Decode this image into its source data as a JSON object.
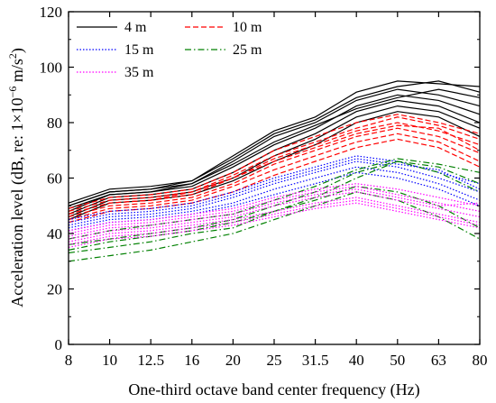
{
  "chart_data": {
    "type": "line",
    "xlabel": "One-third octave band center frequency (Hz)",
    "ylabel_prefix": "Acceleration level (dB, re: 1×10",
    "ylabel_exp": "−6",
    "ylabel_suffix": " m/s",
    "ylabel_sup2": "2",
    "ylabel_close": ")",
    "categories": [
      "8",
      "10",
      "12.5",
      "16",
      "20",
      "25",
      "31.5",
      "40",
      "50",
      "63",
      "80"
    ],
    "ylim": [
      0,
      120
    ],
    "yticks": [
      0,
      20,
      40,
      60,
      80,
      100,
      120
    ],
    "yticklabels": [
      "0",
      "20",
      "40",
      "60",
      "80",
      "100",
      "120"
    ],
    "grid": false,
    "legend_placement": "top-left",
    "legend": [
      {
        "label": "4 m",
        "color": "#000000",
        "dash": "solid"
      },
      {
        "label": "10 m",
        "color": "#ff0000",
        "dash": "dashed"
      },
      {
        "label": "15 m",
        "color": "#0000ff",
        "dash": "dotted"
      },
      {
        "label": "25 m",
        "color": "#008000",
        "dash": "dashdot"
      },
      {
        "label": "35 m",
        "color": "#ff00ff",
        "dash": "dotted"
      }
    ],
    "series": [
      {
        "group": "4 m",
        "color": "#000000",
        "dash": "solid",
        "curves": [
          [
            51,
            56,
            57,
            59,
            68,
            77,
            82,
            91,
            95,
            94,
            93
          ],
          [
            50,
            55,
            56,
            58,
            66,
            75,
            80,
            88,
            92,
            90,
            86
          ],
          [
            48,
            54,
            55,
            57,
            64,
            72,
            78,
            86,
            90,
            88,
            83
          ],
          [
            47,
            53,
            54,
            56,
            62,
            70,
            76,
            84,
            88,
            86,
            80
          ],
          [
            49,
            54,
            55,
            58,
            65,
            73,
            79,
            85,
            89,
            92,
            89
          ],
          [
            46,
            52,
            53,
            55,
            60,
            68,
            74,
            82,
            86,
            84,
            78
          ],
          [
            45,
            51,
            52,
            54,
            59,
            66,
            72,
            80,
            84,
            82,
            75
          ],
          [
            50,
            55,
            56,
            59,
            67,
            76,
            81,
            89,
            93,
            95,
            91
          ]
        ]
      },
      {
        "group": "10 m",
        "color": "#ff0000",
        "dash": "dashed",
        "curves": [
          [
            49,
            53,
            54,
            56,
            62,
            70,
            75,
            80,
            83,
            80,
            76
          ],
          [
            47,
            51,
            52,
            54,
            60,
            67,
            72,
            77,
            80,
            77,
            72
          ],
          [
            46,
            50,
            51,
            53,
            58,
            65,
            70,
            75,
            78,
            75,
            69
          ],
          [
            45,
            49,
            50,
            52,
            57,
            63,
            68,
            73,
            76,
            73,
            66
          ],
          [
            48,
            52,
            53,
            55,
            61,
            68,
            73,
            78,
            82,
            79,
            74
          ],
          [
            44,
            48,
            49,
            51,
            55,
            61,
            66,
            71,
            74,
            71,
            64
          ],
          [
            47,
            51,
            52,
            55,
            60,
            66,
            71,
            76,
            79,
            78,
            70
          ]
        ]
      },
      {
        "group": "15 m",
        "color": "#0000ff",
        "dash": "dotted",
        "curves": [
          [
            45,
            48,
            49,
            51,
            55,
            60,
            64,
            68,
            66,
            62,
            58
          ],
          [
            43,
            46,
            47,
            49,
            53,
            58,
            62,
            66,
            64,
            60,
            55
          ],
          [
            42,
            45,
            46,
            48,
            51,
            56,
            60,
            64,
            62,
            58,
            52
          ],
          [
            44,
            47,
            48,
            50,
            54,
            59,
            63,
            67,
            65,
            63,
            56
          ],
          [
            41,
            44,
            45,
            47,
            50,
            54,
            58,
            62,
            60,
            56,
            50
          ]
        ]
      },
      {
        "group": "25 m",
        "color": "#008000",
        "dash": "dashdot",
        "curves": [
          [
            33,
            35,
            37,
            40,
            42,
            48,
            53,
            60,
            66,
            62,
            55
          ],
          [
            36,
            38,
            40,
            42,
            45,
            50,
            55,
            62,
            66,
            64,
            58
          ],
          [
            30,
            32,
            34,
            37,
            40,
            45,
            50,
            55,
            52,
            46,
            38
          ],
          [
            38,
            41,
            43,
            45,
            47,
            52,
            57,
            63,
            67,
            65,
            62
          ],
          [
            34,
            37,
            39,
            41,
            44,
            48,
            52,
            57,
            55,
            50,
            42
          ]
        ]
      },
      {
        "group": "35 m",
        "color": "#ff00ff",
        "dash": "dotted",
        "curves": [
          [
            40,
            43,
            44,
            46,
            48,
            52,
            55,
            57,
            54,
            51,
            48
          ],
          [
            38,
            41,
            42,
            44,
            46,
            50,
            53,
            55,
            52,
            49,
            46
          ],
          [
            37,
            40,
            41,
            43,
            45,
            48,
            51,
            53,
            50,
            47,
            44
          ],
          [
            39,
            42,
            43,
            45,
            47,
            51,
            54,
            56,
            53,
            50,
            51
          ],
          [
            36,
            39,
            40,
            42,
            44,
            47,
            50,
            52,
            49,
            46,
            43
          ],
          [
            41,
            44,
            45,
            47,
            49,
            53,
            56,
            58,
            56,
            53,
            50
          ],
          [
            35,
            38,
            39,
            41,
            43,
            46,
            49,
            51,
            48,
            45,
            42
          ]
        ]
      }
    ]
  }
}
